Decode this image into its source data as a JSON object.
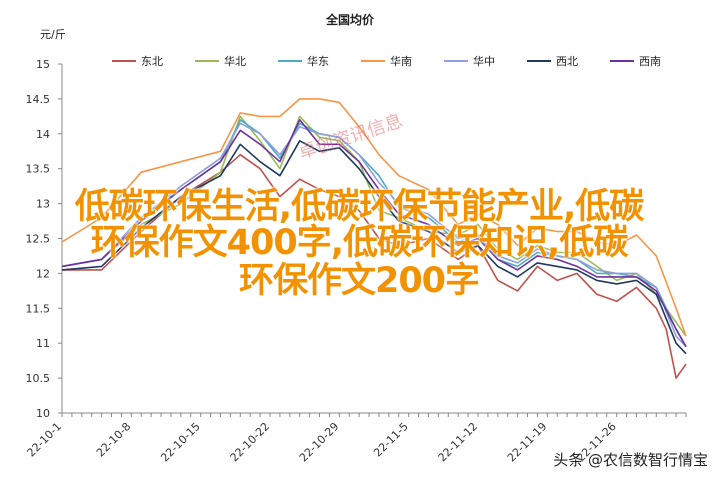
{
  "chart_data": {
    "type": "line",
    "title": "全国均价",
    "unit": "元/斤",
    "ylim": [
      10,
      15
    ],
    "y_ticks": [
      "10",
      "10.5",
      "11",
      "11.5",
      "12",
      "12.5",
      "13",
      "13.5",
      "14",
      "14.5",
      "15"
    ],
    "x_ticks": [
      "22-10-1",
      "22-10-8",
      "22-10-15",
      "22-10-22",
      "22-10-29",
      "22-11-5",
      "22-11-12",
      "22-11-19",
      "22-11-26"
    ],
    "x_count": 63,
    "series": [
      {
        "name": "东北",
        "color": "#c0504d",
        "anchors": [
          [
            0,
            12.05
          ],
          [
            4,
            12.05
          ],
          [
            8,
            12.6
          ],
          [
            12,
            13.1
          ],
          [
            16,
            13.45
          ],
          [
            18,
            13.7
          ],
          [
            20,
            13.5
          ],
          [
            22,
            13.1
          ],
          [
            24,
            13.35
          ],
          [
            26,
            13.2
          ],
          [
            28,
            13.1
          ],
          [
            30,
            12.9
          ],
          [
            32,
            12.5
          ],
          [
            34,
            12.4
          ],
          [
            37,
            12.5
          ],
          [
            40,
            12.2
          ],
          [
            42,
            12.4
          ],
          [
            44,
            11.9
          ],
          [
            46,
            11.75
          ],
          [
            48,
            12.1
          ],
          [
            50,
            11.9
          ],
          [
            52,
            12.0
          ],
          [
            54,
            11.7
          ],
          [
            56,
            11.6
          ],
          [
            58,
            11.8
          ],
          [
            60,
            11.5
          ],
          [
            61,
            11.2
          ],
          [
            62,
            10.5
          ],
          [
            63,
            10.7
          ]
        ]
      },
      {
        "name": "华北",
        "color": "#9bbb59",
        "anchors": [
          [
            0,
            12.1
          ],
          [
            4,
            12.2
          ],
          [
            8,
            12.7
          ],
          [
            12,
            13.0
          ],
          [
            16,
            13.45
          ],
          [
            18,
            14.25
          ],
          [
            20,
            13.9
          ],
          [
            22,
            13.5
          ],
          [
            24,
            14.25
          ],
          [
            26,
            13.95
          ],
          [
            28,
            13.9
          ],
          [
            30,
            13.6
          ],
          [
            32,
            12.9
          ],
          [
            34,
            12.8
          ],
          [
            37,
            12.6
          ],
          [
            40,
            12.55
          ],
          [
            42,
            12.7
          ],
          [
            44,
            12.35
          ],
          [
            46,
            12.2
          ],
          [
            48,
            12.4
          ],
          [
            50,
            12.3
          ],
          [
            52,
            12.3
          ],
          [
            54,
            12.1
          ],
          [
            56,
            11.9
          ],
          [
            58,
            12.0
          ],
          [
            60,
            11.7
          ],
          [
            62,
            11.3
          ],
          [
            63,
            11.1
          ]
        ]
      },
      {
        "name": "华东",
        "color": "#4bacc6",
        "anchors": [
          [
            0,
            12.1
          ],
          [
            4,
            12.2
          ],
          [
            8,
            12.8
          ],
          [
            12,
            13.2
          ],
          [
            16,
            13.6
          ],
          [
            18,
            14.2
          ],
          [
            20,
            14.0
          ],
          [
            22,
            13.65
          ],
          [
            24,
            14.15
          ],
          [
            26,
            14.0
          ],
          [
            28,
            13.95
          ],
          [
            30,
            13.7
          ],
          [
            32,
            13.4
          ],
          [
            34,
            12.95
          ],
          [
            37,
            12.8
          ],
          [
            40,
            12.45
          ],
          [
            42,
            12.55
          ],
          [
            44,
            12.2
          ],
          [
            46,
            12.1
          ],
          [
            48,
            12.3
          ],
          [
            50,
            12.25
          ],
          [
            52,
            12.2
          ],
          [
            54,
            12.0
          ],
          [
            56,
            12.0
          ],
          [
            58,
            11.95
          ],
          [
            60,
            11.8
          ],
          [
            62,
            11.2
          ],
          [
            63,
            10.95
          ]
        ]
      },
      {
        "name": "华南",
        "color": "#f79646",
        "anchors": [
          [
            0,
            12.45
          ],
          [
            4,
            12.8
          ],
          [
            8,
            13.45
          ],
          [
            12,
            13.6
          ],
          [
            16,
            13.75
          ],
          [
            18,
            14.3
          ],
          [
            20,
            14.25
          ],
          [
            22,
            14.25
          ],
          [
            24,
            14.5
          ],
          [
            26,
            14.5
          ],
          [
            28,
            14.45
          ],
          [
            30,
            14.1
          ],
          [
            32,
            13.7
          ],
          [
            34,
            13.4
          ],
          [
            37,
            13.2
          ],
          [
            40,
            12.7
          ],
          [
            42,
            12.85
          ],
          [
            44,
            12.7
          ],
          [
            46,
            12.4
          ],
          [
            48,
            12.65
          ],
          [
            50,
            12.6
          ],
          [
            52,
            12.6
          ],
          [
            54,
            12.45
          ],
          [
            56,
            12.4
          ],
          [
            58,
            12.55
          ],
          [
            60,
            12.25
          ],
          [
            62,
            11.5
          ],
          [
            63,
            11.1
          ]
        ]
      },
      {
        "name": "华中",
        "color": "#8ea0d8",
        "anchors": [
          [
            0,
            12.1
          ],
          [
            4,
            12.2
          ],
          [
            8,
            12.8
          ],
          [
            12,
            13.25
          ],
          [
            16,
            13.65
          ],
          [
            18,
            14.15
          ],
          [
            20,
            14.0
          ],
          [
            22,
            13.7
          ],
          [
            24,
            14.1
          ],
          [
            26,
            14.0
          ],
          [
            28,
            13.95
          ],
          [
            30,
            13.7
          ],
          [
            32,
            13.3
          ],
          [
            34,
            13.0
          ],
          [
            37,
            12.85
          ],
          [
            40,
            12.5
          ],
          [
            42,
            12.55
          ],
          [
            44,
            12.25
          ],
          [
            46,
            12.15
          ],
          [
            48,
            12.35
          ],
          [
            50,
            12.25
          ],
          [
            52,
            12.2
          ],
          [
            54,
            12.05
          ],
          [
            56,
            12.0
          ],
          [
            58,
            12.0
          ],
          [
            60,
            11.8
          ],
          [
            62,
            11.1
          ],
          [
            63,
            10.95
          ]
        ]
      },
      {
        "name": "西北",
        "color": "#1f3864",
        "anchors": [
          [
            0,
            12.05
          ],
          [
            4,
            12.1
          ],
          [
            8,
            12.65
          ],
          [
            12,
            13.1
          ],
          [
            16,
            13.4
          ],
          [
            18,
            13.85
          ],
          [
            20,
            13.6
          ],
          [
            22,
            13.4
          ],
          [
            24,
            13.9
          ],
          [
            26,
            13.75
          ],
          [
            28,
            13.8
          ],
          [
            30,
            13.5
          ],
          [
            32,
            13.1
          ],
          [
            34,
            12.75
          ],
          [
            37,
            12.6
          ],
          [
            40,
            12.3
          ],
          [
            42,
            12.4
          ],
          [
            44,
            12.1
          ],
          [
            46,
            11.95
          ],
          [
            48,
            12.15
          ],
          [
            50,
            12.1
          ],
          [
            52,
            12.05
          ],
          [
            54,
            11.9
          ],
          [
            56,
            11.85
          ],
          [
            58,
            11.9
          ],
          [
            60,
            11.7
          ],
          [
            62,
            11.0
          ],
          [
            63,
            10.85
          ]
        ]
      },
      {
        "name": "西南",
        "color": "#7030a0",
        "anchors": [
          [
            0,
            12.1
          ],
          [
            4,
            12.2
          ],
          [
            8,
            12.75
          ],
          [
            12,
            13.2
          ],
          [
            16,
            13.6
          ],
          [
            18,
            14.05
          ],
          [
            20,
            13.85
          ],
          [
            22,
            13.6
          ],
          [
            24,
            14.2
          ],
          [
            26,
            13.85
          ],
          [
            28,
            13.85
          ],
          [
            30,
            13.6
          ],
          [
            32,
            13.2
          ],
          [
            34,
            12.85
          ],
          [
            37,
            12.7
          ],
          [
            40,
            12.4
          ],
          [
            42,
            12.5
          ],
          [
            44,
            12.2
          ],
          [
            46,
            12.05
          ],
          [
            48,
            12.25
          ],
          [
            50,
            12.2
          ],
          [
            52,
            12.1
          ],
          [
            54,
            11.95
          ],
          [
            56,
            11.95
          ],
          [
            58,
            11.95
          ],
          [
            60,
            11.75
          ],
          [
            62,
            11.2
          ],
          [
            63,
            10.95
          ]
        ]
      }
    ]
  },
  "overlay": {
    "line1": "低碳环保生活,低碳环保节能产业,低碳",
    "line2": "环保作文400字,低碳环保知识,低碳",
    "line3": "环保作文200字"
  },
  "stamp_text": "卓创资讯信息",
  "watermark": "头条 @农信数智行情宝"
}
